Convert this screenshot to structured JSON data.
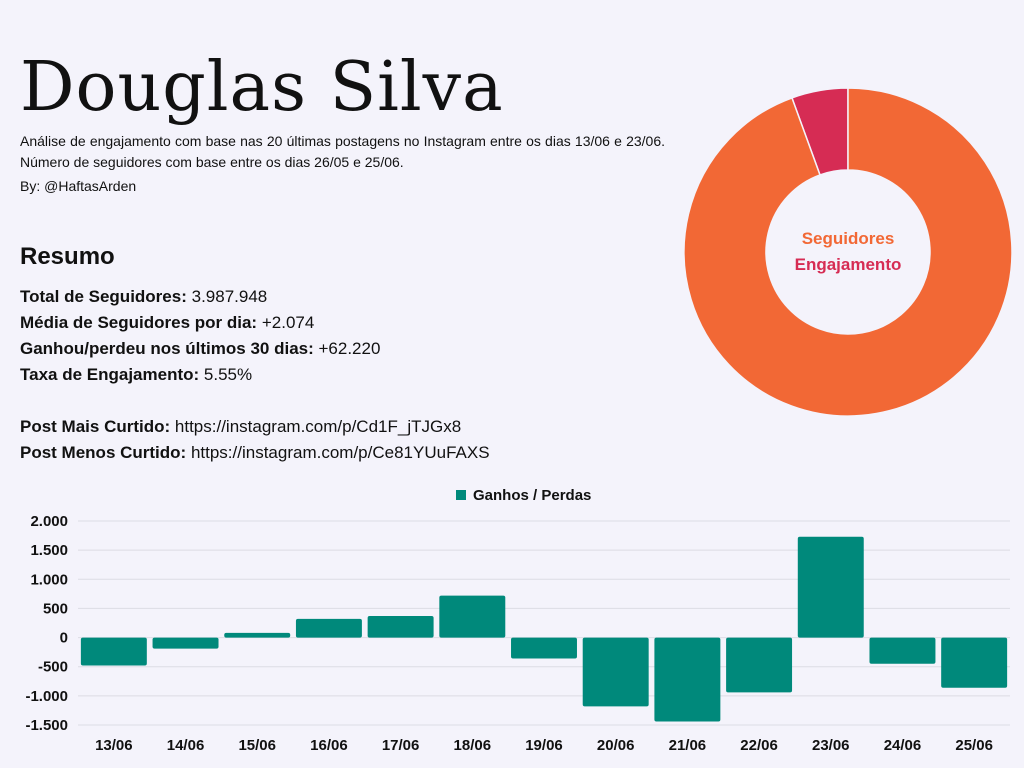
{
  "header": {
    "title": "Douglas Silva",
    "subtitle": "Análise de engajamento com base nas 20 últimas postagens no Instagram entre os dias 13/06 e 23/06. Número de seguidores com base entre os dias 26/05 e 25/06.",
    "byline": "By: @HaftasArden"
  },
  "summary": {
    "heading": "Resumo",
    "items": [
      {
        "label": "Total de Seguidores:",
        "value": "3.987.948"
      },
      {
        "label": "Média de Seguidores por dia:",
        "value": "+2.074"
      },
      {
        "label": "Ganhou/perdeu nos últimos 30 dias:",
        "value": "+62.220"
      },
      {
        "label": "Taxa de Engajamento:",
        "value": "5.55%"
      }
    ],
    "links": [
      {
        "label": "Post Mais Curtido:",
        "value": "https://instagram.com/p/Cd1F_jTJGx8"
      },
      {
        "label": "Post Menos Curtido:",
        "value": "https://instagram.com/p/Ce81YUuFAXS"
      }
    ]
  },
  "colors": {
    "followers": "#f26835",
    "engagement": "#d62c54",
    "bar": "#00897b",
    "grid": "#dcdce4",
    "background": "#f4f3fb"
  },
  "chart_data": [
    {
      "type": "pie",
      "donut": true,
      "labels": [
        "Seguidores",
        "Engajamento"
      ],
      "values": [
        94.45,
        5.55
      ],
      "colors": [
        "#f26835",
        "#d62c54"
      ],
      "title": "",
      "legend": "center"
    },
    {
      "type": "bar",
      "title": "",
      "legend": "top-center",
      "categories": [
        "13/06",
        "14/06",
        "15/06",
        "16/06",
        "17/06",
        "18/06",
        "19/06",
        "20/06",
        "21/06",
        "22/06",
        "23/06",
        "24/06",
        "25/06"
      ],
      "series": [
        {
          "name": "Ganhos / Perdas",
          "values": [
            -480,
            -190,
            80,
            320,
            370,
            720,
            -360,
            -1180,
            -1440,
            -940,
            1730,
            -450,
            -860
          ],
          "color": "#00897b"
        }
      ],
      "ylim": [
        -1500,
        2000
      ],
      "yticks": [
        2000,
        1500,
        1000,
        500,
        0,
        -500,
        -1000,
        -1500
      ],
      "ytick_labels": [
        "2.000",
        "1.500",
        "1.000",
        "500",
        "0",
        "-500",
        "-1.000",
        "-1.500"
      ],
      "grid": true,
      "xlabel": "",
      "ylabel": ""
    }
  ]
}
